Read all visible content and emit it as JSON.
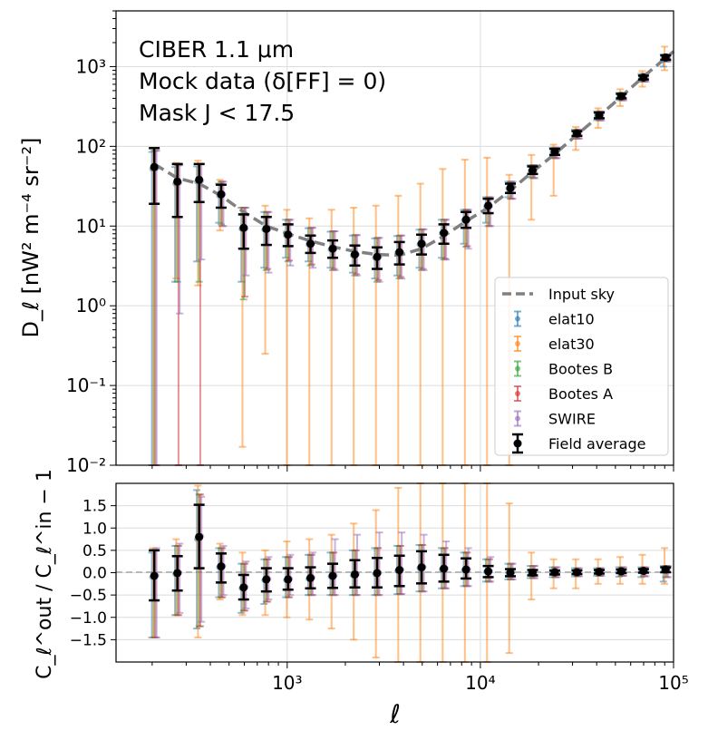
{
  "chart_data": [
    {
      "type": "scatter",
      "panel": "top",
      "annotation": [
        "CIBER 1.1 μm",
        "Mock data (δ[FF] = 0)",
        "Mask J < 17.5"
      ],
      "xlabel": "ℓ",
      "ylabel": "D_ℓ [nW² m⁻⁴ sr⁻²]",
      "xscale": "log",
      "yscale": "log",
      "xlim": [
        130,
        100000
      ],
      "ylim": [
        0.01,
        5000
      ],
      "grid": true,
      "legend_position": "lower-right",
      "y_tick_labels": [
        "10⁻²",
        "10⁻¹",
        "10⁰",
        "10¹",
        "10²",
        "10³"
      ],
      "x": [
        205,
        270,
        350,
        455,
        595,
        780,
        1010,
        1320,
        1720,
        2240,
        2920,
        3810,
        4960,
        6470,
        8430,
        10980,
        14300,
        18630,
        24270,
        31620,
        41200,
        53650,
        69900,
        91050
      ],
      "input_sky": {
        "name": "Input sky",
        "x": [
          205,
          270,
          350,
          455,
          595,
          780,
          1010,
          1320,
          1720,
          2240,
          2920,
          3810,
          4960,
          6470,
          8430,
          10980,
          14300,
          18630,
          24270,
          31620,
          41200,
          53650,
          69900,
          100000
        ],
        "y": [
          60,
          40,
          34,
          24,
          15,
          10,
          8,
          6.5,
          5.5,
          4.8,
          4.4,
          4.3,
          5.2,
          7.5,
          11.5,
          17,
          28,
          48,
          80,
          140,
          240,
          420,
          750,
          1550
        ]
      },
      "field_average": {
        "name": "Field average",
        "y": [
          55,
          36,
          38,
          25,
          9.5,
          9.2,
          7.8,
          6.0,
          5.2,
          4.4,
          4.1,
          4.7,
          6.0,
          8.2,
          12,
          18,
          30,
          50,
          85,
          145,
          245,
          425,
          730,
          1300
        ],
        "lo": [
          19,
          13,
          20,
          17,
          5.2,
          5.8,
          5.6,
          4.6,
          4.0,
          3.2,
          2.9,
          3.3,
          4.4,
          6.0,
          9.5,
          14.5,
          26,
          45,
          78,
          135,
          225,
          400,
          690,
          1220
        ],
        "hi": [
          95,
          60,
          60,
          33,
          14,
          13,
          10.5,
          7.6,
          6.6,
          5.7,
          5.4,
          6.3,
          7.8,
          10.5,
          15,
          22,
          34,
          56,
          93,
          155,
          265,
          455,
          770,
          1380
        ]
      },
      "series": [
        {
          "name": "elat10",
          "color": "#1f77b4",
          "offset": -0.012,
          "y": [
            52,
            34,
            36,
            24,
            9.2,
            9.0,
            7.6,
            5.9,
            5.1,
            4.3,
            4.0,
            4.6,
            5.9,
            8.1,
            11.8,
            17.6,
            29.5,
            49,
            84,
            143,
            242,
            420,
            720,
            1280
          ],
          "lo": [
            0.01,
            2.0,
            3.6,
            11,
            2.0,
            3.0,
            4.0,
            3.6,
            3.0,
            2.6,
            2.2,
            2.4,
            3.0,
            4.0,
            6.0,
            11,
            23,
            41,
            72,
            126,
            213,
            380,
            650,
            1000
          ],
          "hi": [
            85,
            55,
            56,
            34,
            17,
            15,
            12,
            9.4,
            8.5,
            7.6,
            7.0,
            7.5,
            9.0,
            12,
            16,
            23,
            36,
            58,
            96,
            162,
            274,
            468,
            810,
            1420
          ]
        },
        {
          "name": "elat30",
          "color": "#ff7f0e",
          "offset": -0.006,
          "y": [
            52,
            34,
            37,
            25,
            9.0,
            8.8,
            7.4,
            5.7,
            5.0,
            4.2,
            3.9,
            4.5,
            5.8,
            7.9,
            11.6,
            17.3,
            29,
            47,
            82,
            141,
            240,
            418,
            715,
            1300
          ],
          "lo": [
            0.01,
            2.2,
            1.8,
            8.8,
            0.017,
            0.25,
            0.01,
            0.01,
            0.01,
            0.01,
            0.01,
            0.01,
            0.01,
            0.01,
            0.01,
            0.01,
            0.01,
            12,
            24,
            90,
            170,
            320,
            560,
            900
          ],
          "hi": [
            95,
            62,
            66,
            38,
            17,
            18,
            16,
            12.5,
            16,
            17,
            18,
            24,
            34,
            52,
            68,
            72,
            44,
            78,
            105,
            175,
            300,
            520,
            880,
            1780
          ]
        },
        {
          "name": "Bootes B",
          "color": "#2ca02c",
          "offset": 0.0,
          "y": [
            53,
            35,
            37,
            25,
            9.3,
            9.1,
            7.7,
            6.0,
            5.2,
            4.4,
            4.1,
            4.7,
            6.0,
            8.2,
            12,
            17.8,
            29.8,
            49.5,
            84.5,
            144,
            244,
            422,
            725,
            1290
          ],
          "lo": [
            0.01,
            2.0,
            2.0,
            10.5,
            1.2,
            2.8,
            3.6,
            3.2,
            2.8,
            2.4,
            2.0,
            2.2,
            2.8,
            3.8,
            5.5,
            10,
            22,
            40,
            71,
            125,
            212,
            378,
            648,
            1160
          ],
          "hi": [
            88,
            58,
            60,
            36,
            17,
            15,
            12,
            9.5,
            8.6,
            7.7,
            7.1,
            7.6,
            9.1,
            12,
            16,
            23,
            36,
            58,
            96,
            162,
            274,
            468,
            810,
            1420
          ]
        },
        {
          "name": "Bootes A",
          "color": "#d62728",
          "offset": 0.006,
          "y": [
            53,
            35,
            37,
            25,
            9.3,
            9.1,
            7.7,
            6.0,
            5.2,
            4.4,
            4.1,
            4.7,
            6.0,
            8.2,
            12,
            17.8,
            29.8,
            49.5,
            84.5,
            144,
            244,
            422,
            725,
            1290
          ],
          "lo": [
            0.01,
            0.01,
            0.01,
            10,
            1.3,
            2.9,
            3.7,
            3.3,
            2.9,
            2.5,
            2.1,
            2.3,
            2.9,
            3.9,
            5.6,
            10,
            22,
            40,
            71,
            125,
            212,
            378,
            648,
            1160
          ],
          "hi": [
            88,
            58,
            60,
            36,
            17,
            15,
            12,
            9.5,
            8.6,
            7.7,
            7.1,
            7.6,
            9.1,
            12,
            16,
            23,
            36,
            58,
            96,
            162,
            274,
            468,
            810,
            1420
          ]
        },
        {
          "name": "SWIRE",
          "color": "#9467bd",
          "offset": 0.012,
          "y": [
            53,
            35,
            37,
            25,
            9.3,
            9.1,
            7.7,
            6.0,
            5.2,
            4.4,
            4.1,
            4.7,
            6.0,
            8.2,
            12,
            17.8,
            29.8,
            49.5,
            84.5,
            144,
            244,
            422,
            725,
            1290
          ],
          "lo": [
            0.01,
            0.8,
            3.8,
            10,
            2.4,
            2.6,
            3.2,
            3.0,
            2.8,
            2.4,
            2.0,
            2.2,
            2.8,
            3.8,
            5.2,
            10,
            22,
            40,
            71,
            125,
            212,
            378,
            648,
            1160
          ],
          "hi": [
            88,
            58,
            60,
            36,
            17,
            15,
            12,
            9.5,
            8.6,
            7.7,
            7.1,
            7.6,
            9.1,
            12,
            16,
            23,
            36,
            58,
            96,
            162,
            274,
            468,
            810,
            1420
          ]
        }
      ],
      "legend": [
        "Input sky",
        "elat10",
        "elat30",
        "Bootes B",
        "Bootes A",
        "SWIRE",
        "Field average"
      ]
    },
    {
      "type": "scatter",
      "panel": "bottom",
      "xlabel": "ℓ",
      "ylabel": "C_ℓ^out / C_ℓ^in − 1",
      "xscale": "log",
      "xlim": [
        130,
        100000
      ],
      "ylim": [
        -2.0,
        2.0
      ],
      "yticks": [
        -1.5,
        -1.0,
        -0.5,
        0.0,
        0.5,
        1.0,
        1.5
      ],
      "y_tick_labels": [
        "−1.5",
        "−1.0",
        "−0.5",
        "0.0",
        "0.5",
        "1.0",
        "1.5"
      ],
      "x_tick_labels": [
        "10³",
        "10⁴",
        "10⁵"
      ],
      "grid": true,
      "reference_line": 0.0,
      "field_average": {
        "name": "Field average",
        "y": [
          -0.07,
          -0.01,
          0.8,
          0.14,
          -0.33,
          -0.15,
          -0.15,
          -0.12,
          -0.07,
          -0.04,
          -0.01,
          0.06,
          0.12,
          0.09,
          0.07,
          0.03,
          0.0,
          0.0,
          0.01,
          0.01,
          0.02,
          0.03,
          0.04,
          0.07
        ],
        "lo": [
          -0.62,
          -0.4,
          0.1,
          -0.22,
          -0.6,
          -0.42,
          -0.38,
          -0.35,
          -0.34,
          -0.33,
          -0.33,
          -0.3,
          -0.24,
          -0.2,
          -0.13,
          -0.1,
          -0.08,
          -0.06,
          -0.04,
          -0.03,
          -0.02,
          -0.01,
          0.0,
          0.01
        ],
        "hi": [
          0.5,
          0.37,
          1.52,
          0.43,
          -0.05,
          0.1,
          0.1,
          0.12,
          0.2,
          0.28,
          0.33,
          0.38,
          0.48,
          0.4,
          0.32,
          0.15,
          0.08,
          0.06,
          0.05,
          0.05,
          0.06,
          0.07,
          0.08,
          0.12
        ]
      },
      "series": [
        {
          "name": "elat10",
          "color": "#1f77b4",
          "offset": -0.012,
          "y": [
            -0.1,
            -0.03,
            0.75,
            0.12,
            -0.35,
            -0.17,
            -0.17,
            -0.14,
            -0.09,
            -0.06,
            -0.03,
            0.04,
            0.1,
            0.07,
            0.05,
            0.02,
            -0.01,
            -0.01,
            0.0,
            0.0,
            0.01,
            0.02,
            0.03,
            0.05
          ],
          "lo": [
            -1.45,
            -0.95,
            -1.25,
            -0.55,
            -0.9,
            -0.7,
            -0.55,
            -0.5,
            -0.5,
            -0.5,
            -0.5,
            -0.48,
            -0.42,
            -0.35,
            -0.3,
            -0.2,
            -0.15,
            -0.12,
            -0.1,
            -0.08,
            -0.07,
            -0.09,
            -0.1,
            -0.2
          ],
          "hi": [
            0.45,
            0.6,
            1.85,
            0.55,
            0.2,
            0.3,
            0.35,
            0.4,
            0.45,
            0.5,
            0.55,
            0.6,
            0.62,
            0.55,
            0.45,
            0.3,
            0.2,
            0.15,
            0.12,
            0.1,
            0.1,
            0.12,
            0.12,
            0.15
          ]
        },
        {
          "name": "elat30",
          "color": "#ff7f0e",
          "offset": -0.006,
          "y": [
            -0.1,
            -0.03,
            0.75,
            0.12,
            -0.35,
            -0.17,
            -0.17,
            -0.14,
            -0.09,
            -0.06,
            -0.03,
            0.04,
            0.1,
            0.07,
            0.05,
            0.02,
            -0.01,
            -0.01,
            0.0,
            0.0,
            0.01,
            0.02,
            0.03,
            0.05
          ],
          "lo": [
            -1.45,
            -0.95,
            -1.45,
            -0.6,
            -0.95,
            -0.95,
            -1.0,
            -1.05,
            -1.25,
            -1.5,
            -1.9,
            -2.0,
            -2.0,
            -2.0,
            -2.0,
            -2.0,
            -1.8,
            -0.6,
            -0.35,
            -0.35,
            -0.25,
            -0.25,
            -0.25,
            -0.25
          ],
          "hi": [
            0.55,
            0.75,
            1.95,
            0.65,
            0.45,
            0.5,
            0.7,
            0.75,
            0.85,
            1.1,
            1.4,
            1.9,
            2.0,
            2.0,
            2.0,
            2.0,
            1.55,
            0.45,
            0.3,
            0.3,
            0.3,
            0.35,
            0.4,
            0.55
          ]
        },
        {
          "name": "Bootes B",
          "color": "#2ca02c",
          "offset": 0.0,
          "y": [
            -0.08,
            -0.02,
            0.78,
            0.13,
            -0.34,
            -0.16,
            -0.16,
            -0.13,
            -0.08,
            -0.05,
            -0.02,
            0.05,
            0.11,
            0.08,
            0.06,
            0.02,
            0.0,
            0.0,
            0.01,
            0.01,
            0.02,
            0.03,
            0.04,
            0.06
          ],
          "lo": [
            -1.45,
            -0.95,
            -1.2,
            -0.55,
            -0.85,
            -0.65,
            -0.55,
            -0.5,
            -0.5,
            -0.5,
            -0.5,
            -0.48,
            -0.42,
            -0.35,
            -0.3,
            -0.2,
            -0.15,
            -0.12,
            -0.1,
            -0.08,
            -0.07,
            -0.07,
            -0.08,
            -0.1
          ],
          "hi": [
            0.5,
            0.6,
            1.75,
            0.55,
            0.2,
            0.3,
            0.35,
            0.4,
            0.45,
            0.5,
            0.55,
            0.6,
            0.62,
            0.55,
            0.45,
            0.3,
            0.2,
            0.15,
            0.12,
            0.1,
            0.1,
            0.12,
            0.12,
            0.15
          ]
        },
        {
          "name": "Bootes A",
          "color": "#d62728",
          "offset": 0.006,
          "y": [
            -0.08,
            -0.02,
            0.78,
            0.13,
            -0.34,
            -0.16,
            -0.16,
            -0.13,
            -0.08,
            -0.05,
            -0.02,
            0.05,
            0.11,
            0.08,
            0.06,
            0.02,
            0.0,
            0.0,
            0.01,
            0.01,
            0.02,
            0.03,
            0.04,
            0.06
          ],
          "lo": [
            -1.45,
            -0.95,
            -1.2,
            -0.55,
            -0.85,
            -0.65,
            -0.55,
            -0.5,
            -0.5,
            -0.5,
            -0.5,
            -0.48,
            -0.42,
            -0.35,
            -0.3,
            -0.2,
            -0.15,
            -0.12,
            -0.1,
            -0.08,
            -0.07,
            -0.07,
            -0.08,
            -0.1
          ],
          "hi": [
            0.5,
            0.6,
            1.75,
            0.55,
            0.2,
            0.3,
            0.35,
            0.4,
            0.45,
            0.5,
            0.55,
            0.6,
            0.62,
            0.55,
            0.45,
            0.3,
            0.2,
            0.15,
            0.12,
            0.1,
            0.1,
            0.12,
            0.12,
            0.15
          ]
        },
        {
          "name": "SWIRE",
          "color": "#9467bd",
          "offset": 0.012,
          "y": [
            -0.06,
            0.0,
            0.82,
            0.15,
            -0.32,
            -0.14,
            -0.14,
            -0.11,
            -0.06,
            -0.03,
            0.0,
            0.07,
            0.13,
            0.1,
            0.08,
            0.03,
            0.01,
            0.01,
            0.02,
            0.02,
            0.03,
            0.04,
            0.05,
            0.07
          ],
          "lo": [
            -1.45,
            -0.9,
            -1.1,
            -0.5,
            -0.8,
            -0.6,
            -0.5,
            -0.5,
            -0.5,
            -0.5,
            -0.5,
            -0.48,
            -0.42,
            -0.35,
            -0.3,
            -0.2,
            -0.15,
            -0.12,
            -0.1,
            -0.08,
            -0.07,
            -0.07,
            -0.08,
            -0.1
          ],
          "hi": [
            0.55,
            0.65,
            1.7,
            0.6,
            0.25,
            0.35,
            0.4,
            0.45,
            0.75,
            0.85,
            0.9,
            0.9,
            0.85,
            0.7,
            0.55,
            0.35,
            0.2,
            0.15,
            0.12,
            0.1,
            0.1,
            0.12,
            0.12,
            0.15
          ]
        }
      ]
    }
  ]
}
